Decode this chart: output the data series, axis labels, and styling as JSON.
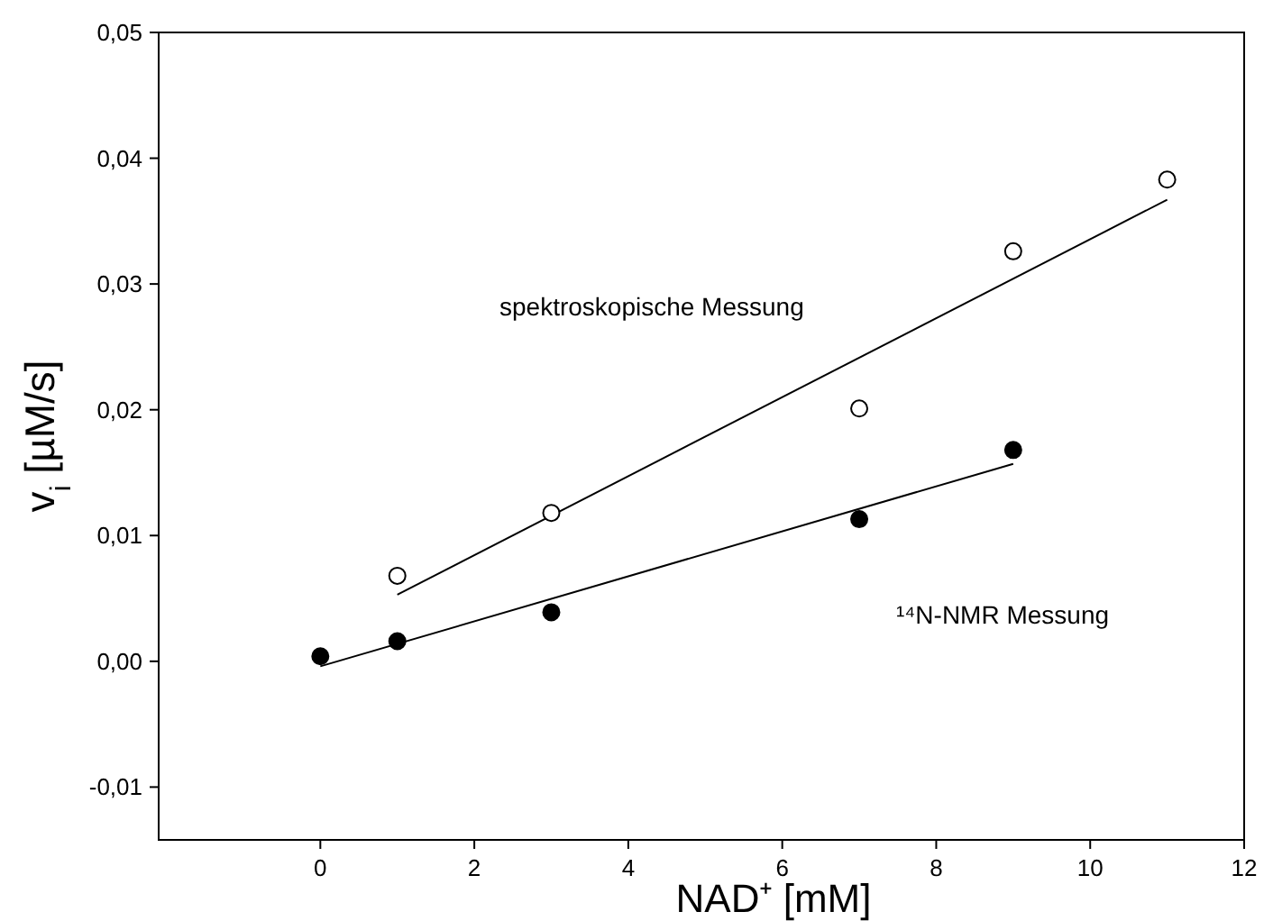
{
  "chart_data": {
    "type": "scatter",
    "xlabel": "NAD⁺ [mM]",
    "ylabel": "v$_{i}$ [µM/s]",
    "xlim": [
      -2.1,
      12
    ],
    "xticks": [
      0,
      2,
      4,
      6,
      8,
      10,
      12
    ],
    "ylim": [
      -0.0142,
      0.05
    ],
    "yticks": [
      {
        "value": -0.01,
        "label": "-0,01"
      },
      {
        "value": 0,
        "label": "0,00"
      },
      {
        "value": 0.01,
        "label": "0,01"
      },
      {
        "value": 0.02,
        "label": "0,02"
      },
      {
        "value": 0.03,
        "label": "0,03"
      },
      {
        "value": 0.04,
        "label": "0,04"
      },
      {
        "value": 0.05,
        "label": "0,05"
      }
    ],
    "grid": false,
    "series": [
      {
        "marker": "circle",
        "color": "#ffffff",
        "x": [
          1,
          3,
          7,
          9,
          11
        ],
        "values": [
          0.0068,
          0.0118,
          0.0201,
          0.0326,
          0.0383
        ]
      },
      {
        "marker": "circle",
        "color": "#000000",
        "x": [
          0,
          1,
          3,
          7,
          9
        ],
        "values": [
          0.0004,
          0.0016,
          0.0039,
          0.0113,
          0.0168
        ]
      },
      {
        "type": "line",
        "color": "#000000",
        "x": [
          1,
          11
        ],
        "values": [
          0.0053,
          0.0367
        ]
      },
      {
        "type": "line",
        "color": "#000000",
        "x": [
          0,
          9
        ],
        "values": [
          -0.0004,
          0.0157
        ]
      }
    ],
    "annotations": [
      "spektroskopische Messung",
      "¹⁴N-NMR Messung"
    ]
  }
}
